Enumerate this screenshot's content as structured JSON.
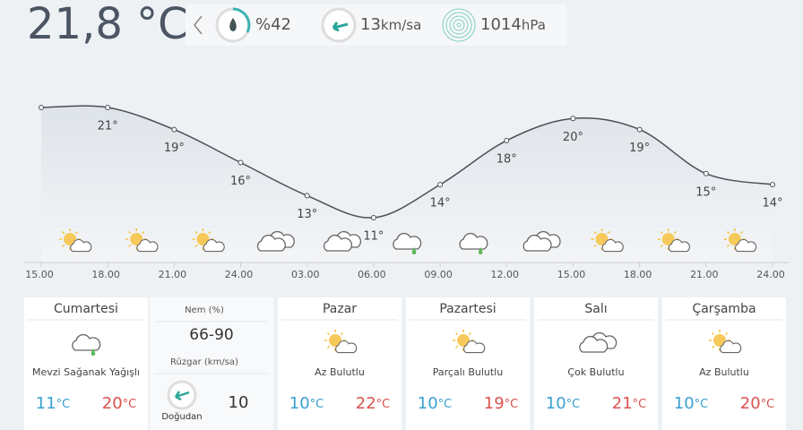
{
  "header": {
    "temperature": "21,8 °C",
    "humidity": "%42",
    "wind_speed": "13",
    "wind_unit": "km/sa",
    "pressure": "1014",
    "pressure_unit": "hPa"
  },
  "chart_data": {
    "type": "line",
    "categories": [
      "15.00",
      "18.00",
      "21.00",
      "24.00",
      "03.00",
      "06.00",
      "09.00",
      "12.00",
      "15.00",
      "18.00",
      "21.00",
      "24.00"
    ],
    "values": [
      21,
      21,
      19,
      16,
      13,
      11,
      14,
      18,
      20,
      19,
      15,
      14
    ],
    "value_labels": [
      null,
      "21°",
      "19°",
      "16°",
      "13°",
      "11°",
      "14°",
      "18°",
      "20°",
      "19°",
      "15°",
      "14°"
    ],
    "color": "#4a4f57"
  },
  "temp_unit": "°C",
  "today": {
    "day": "Cumartesi",
    "condition": "Mevzi Sağanak Yağışlı",
    "low": 11,
    "high": 20,
    "humidity_label": "Nem (%)",
    "humidity": "66-90",
    "wind_label": "Rüzgar (km/sa)",
    "wind_direction": "Doğudan",
    "wind_speed": 10
  },
  "days": [
    {
      "day": "Pazar",
      "condition": "Az Bulutlu",
      "low": 10,
      "high": 22
    },
    {
      "day": "Pazartesi",
      "condition": "Parçalı Bulutlu",
      "low": 10,
      "high": 19
    },
    {
      "day": "Salı",
      "condition": "Çok Bulutlu",
      "low": 10,
      "high": 21
    },
    {
      "day": "Çarşamba",
      "condition": "Az Bulutlu",
      "low": 10,
      "high": 20
    }
  ]
}
